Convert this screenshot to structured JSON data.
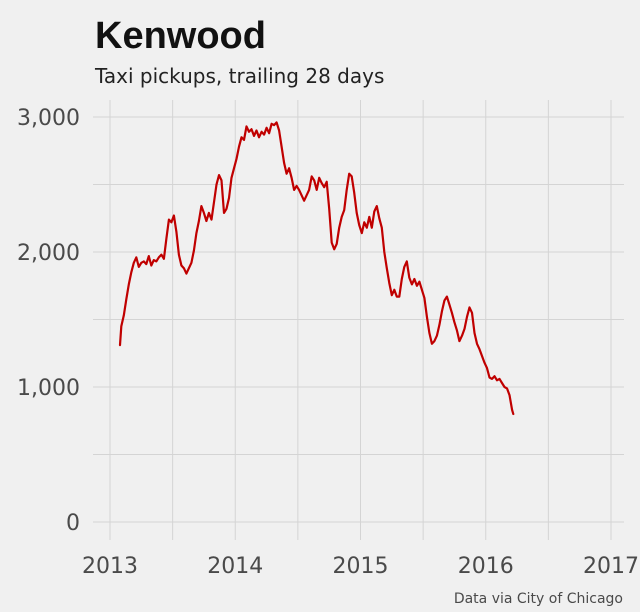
{
  "chart_data": {
    "type": "line",
    "title": "Kenwood",
    "subtitle": "Taxi pickups, trailing 28 days",
    "caption": "Data via City of Chicago",
    "xlabel": "",
    "ylabel": "",
    "xlim": [
      2013.0,
      2017.0
    ],
    "ylim": [
      0,
      3000
    ],
    "x_ticks": [
      2013,
      2014,
      2015,
      2016,
      2017
    ],
    "x_tick_labels": [
      "2013",
      "2014",
      "2015",
      "2016",
      "2017"
    ],
    "y_ticks": [
      0,
      1000,
      2000,
      3000
    ],
    "y_tick_labels": [
      "0",
      "1,000",
      "2,000",
      "3,000"
    ],
    "grid": true,
    "legend": "none",
    "line_color": "#c00000",
    "series": [
      {
        "points": [
          [
            2013.08,
            1310
          ],
          [
            2013.09,
            1450
          ],
          [
            2013.11,
            1530
          ],
          [
            2013.13,
            1650
          ],
          [
            2013.15,
            1760
          ],
          [
            2013.17,
            1850
          ],
          [
            2013.19,
            1920
          ],
          [
            2013.21,
            1960
          ],
          [
            2013.23,
            1890
          ],
          [
            2013.25,
            1920
          ],
          [
            2013.27,
            1930
          ],
          [
            2013.29,
            1910
          ],
          [
            2013.31,
            1970
          ],
          [
            2013.33,
            1900
          ],
          [
            2013.35,
            1940
          ],
          [
            2013.37,
            1930
          ],
          [
            2013.39,
            1960
          ],
          [
            2013.41,
            1980
          ],
          [
            2013.43,
            1950
          ],
          [
            2013.45,
            2100
          ],
          [
            2013.47,
            2240
          ],
          [
            2013.49,
            2220
          ],
          [
            2013.51,
            2270
          ],
          [
            2013.53,
            2150
          ],
          [
            2013.55,
            1980
          ],
          [
            2013.57,
            1900
          ],
          [
            2013.59,
            1880
          ],
          [
            2013.61,
            1840
          ],
          [
            2013.63,
            1880
          ],
          [
            2013.65,
            1920
          ],
          [
            2013.67,
            2010
          ],
          [
            2013.69,
            2140
          ],
          [
            2013.71,
            2230
          ],
          [
            2013.73,
            2340
          ],
          [
            2013.75,
            2290
          ],
          [
            2013.77,
            2230
          ],
          [
            2013.79,
            2290
          ],
          [
            2013.81,
            2240
          ],
          [
            2013.83,
            2370
          ],
          [
            2013.85,
            2500
          ],
          [
            2013.87,
            2570
          ],
          [
            2013.89,
            2530
          ],
          [
            2013.91,
            2290
          ],
          [
            2013.93,
            2320
          ],
          [
            2013.95,
            2400
          ],
          [
            2013.97,
            2550
          ],
          [
            2013.99,
            2620
          ],
          [
            2014.01,
            2690
          ],
          [
            2014.03,
            2780
          ],
          [
            2014.05,
            2850
          ],
          [
            2014.07,
            2830
          ],
          [
            2014.09,
            2930
          ],
          [
            2014.11,
            2890
          ],
          [
            2014.13,
            2910
          ],
          [
            2014.15,
            2860
          ],
          [
            2014.17,
            2900
          ],
          [
            2014.19,
            2850
          ],
          [
            2014.21,
            2890
          ],
          [
            2014.23,
            2870
          ],
          [
            2014.25,
            2920
          ],
          [
            2014.27,
            2880
          ],
          [
            2014.29,
            2950
          ],
          [
            2014.31,
            2940
          ],
          [
            2014.33,
            2960
          ],
          [
            2014.35,
            2900
          ],
          [
            2014.37,
            2780
          ],
          [
            2014.39,
            2660
          ],
          [
            2014.41,
            2580
          ],
          [
            2014.43,
            2620
          ],
          [
            2014.45,
            2550
          ],
          [
            2014.47,
            2460
          ],
          [
            2014.49,
            2490
          ],
          [
            2014.51,
            2460
          ],
          [
            2014.53,
            2420
          ],
          [
            2014.55,
            2380
          ],
          [
            2014.57,
            2420
          ],
          [
            2014.59,
            2460
          ],
          [
            2014.61,
            2560
          ],
          [
            2014.63,
            2530
          ],
          [
            2014.65,
            2460
          ],
          [
            2014.67,
            2550
          ],
          [
            2014.69,
            2510
          ],
          [
            2014.71,
            2480
          ],
          [
            2014.73,
            2520
          ],
          [
            2014.75,
            2320
          ],
          [
            2014.77,
            2070
          ],
          [
            2014.79,
            2020
          ],
          [
            2014.81,
            2060
          ],
          [
            2014.83,
            2180
          ],
          [
            2014.85,
            2260
          ],
          [
            2014.87,
            2310
          ],
          [
            2014.89,
            2460
          ],
          [
            2014.91,
            2580
          ],
          [
            2014.93,
            2560
          ],
          [
            2014.95,
            2440
          ],
          [
            2014.97,
            2290
          ],
          [
            2014.99,
            2200
          ],
          [
            2015.01,
            2140
          ],
          [
            2015.03,
            2220
          ],
          [
            2015.05,
            2180
          ],
          [
            2015.07,
            2260
          ],
          [
            2015.09,
            2180
          ],
          [
            2015.11,
            2300
          ],
          [
            2015.13,
            2340
          ],
          [
            2015.15,
            2250
          ],
          [
            2015.17,
            2180
          ],
          [
            2015.19,
            2000
          ],
          [
            2015.21,
            1880
          ],
          [
            2015.23,
            1770
          ],
          [
            2015.25,
            1680
          ],
          [
            2015.27,
            1720
          ],
          [
            2015.29,
            1670
          ],
          [
            2015.31,
            1670
          ],
          [
            2015.33,
            1800
          ],
          [
            2015.35,
            1890
          ],
          [
            2015.37,
            1930
          ],
          [
            2015.39,
            1810
          ],
          [
            2015.41,
            1760
          ],
          [
            2015.43,
            1800
          ],
          [
            2015.45,
            1750
          ],
          [
            2015.47,
            1780
          ],
          [
            2015.49,
            1720
          ],
          [
            2015.51,
            1660
          ],
          [
            2015.53,
            1520
          ],
          [
            2015.55,
            1400
          ],
          [
            2015.57,
            1320
          ],
          [
            2015.59,
            1340
          ],
          [
            2015.61,
            1380
          ],
          [
            2015.63,
            1460
          ],
          [
            2015.65,
            1560
          ],
          [
            2015.67,
            1640
          ],
          [
            2015.69,
            1670
          ],
          [
            2015.71,
            1610
          ],
          [
            2015.73,
            1550
          ],
          [
            2015.75,
            1480
          ],
          [
            2015.77,
            1420
          ],
          [
            2015.79,
            1340
          ],
          [
            2015.81,
            1380
          ],
          [
            2015.83,
            1430
          ],
          [
            2015.85,
            1520
          ],
          [
            2015.87,
            1590
          ],
          [
            2015.89,
            1550
          ],
          [
            2015.91,
            1400
          ],
          [
            2015.93,
            1320
          ],
          [
            2015.95,
            1280
          ],
          [
            2015.97,
            1230
          ],
          [
            2015.99,
            1180
          ],
          [
            2016.01,
            1140
          ],
          [
            2016.03,
            1070
          ],
          [
            2016.05,
            1060
          ],
          [
            2016.07,
            1080
          ],
          [
            2016.09,
            1050
          ],
          [
            2016.11,
            1060
          ],
          [
            2016.13,
            1030
          ],
          [
            2016.15,
            1000
          ],
          [
            2016.17,
            990
          ],
          [
            2016.19,
            940
          ],
          [
            2016.21,
            830
          ],
          [
            2016.22,
            800
          ]
        ]
      }
    ]
  }
}
